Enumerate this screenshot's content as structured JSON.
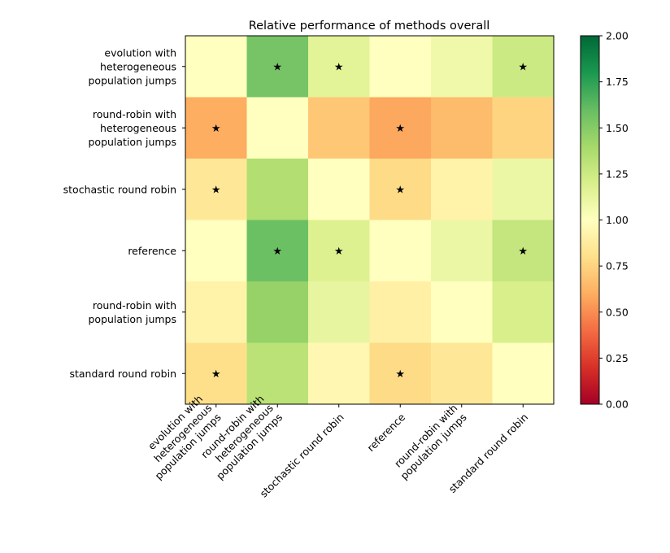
{
  "chart_data": {
    "type": "heatmap",
    "title": "Relative performance of methods overall",
    "row_labels": [
      [
        "evolution with",
        "heterogeneous",
        "population jumps"
      ],
      [
        "round-robin with",
        "heterogeneous",
        "population jumps"
      ],
      [
        "stochastic round robin"
      ],
      [
        "reference"
      ],
      [
        "round-robin with",
        "population jumps"
      ],
      [
        "standard round robin"
      ]
    ],
    "col_labels": [
      [
        "evolution with",
        "heterogeneous",
        "population jumps"
      ],
      [
        "round-robin with",
        "heterogeneous",
        "population jumps"
      ],
      [
        "stochastic round robin"
      ],
      [
        "reference"
      ],
      [
        "round-robin with",
        "population jumps"
      ],
      [
        "standard round robin"
      ]
    ],
    "values": [
      [
        1.0,
        1.55,
        1.15,
        1.0,
        1.08,
        1.25
      ],
      [
        0.6,
        1.0,
        0.7,
        0.58,
        0.65,
        0.75
      ],
      [
        0.85,
        1.35,
        1.0,
        0.78,
        0.92,
        1.1
      ],
      [
        1.0,
        1.58,
        1.18,
        1.0,
        1.1,
        1.28
      ],
      [
        0.92,
        1.45,
        1.12,
        0.9,
        1.0,
        1.2
      ],
      [
        0.8,
        1.32,
        0.95,
        0.78,
        0.85,
        1.0
      ]
    ],
    "significant": [
      [
        false,
        true,
        true,
        false,
        false,
        true
      ],
      [
        true,
        false,
        false,
        true,
        false,
        false
      ],
      [
        true,
        false,
        false,
        true,
        false,
        false
      ],
      [
        false,
        true,
        true,
        false,
        false,
        true
      ],
      [
        false,
        false,
        false,
        false,
        false,
        false
      ],
      [
        true,
        false,
        false,
        true,
        false,
        false
      ]
    ],
    "marker": "★",
    "colormap": "RdYlGn",
    "colorbar": {
      "vmin": 0.0,
      "vmax": 2.0,
      "ticks": [
        "0.00",
        "0.25",
        "0.50",
        "0.75",
        "1.00",
        "1.25",
        "1.50",
        "1.75",
        "2.00"
      ]
    }
  }
}
